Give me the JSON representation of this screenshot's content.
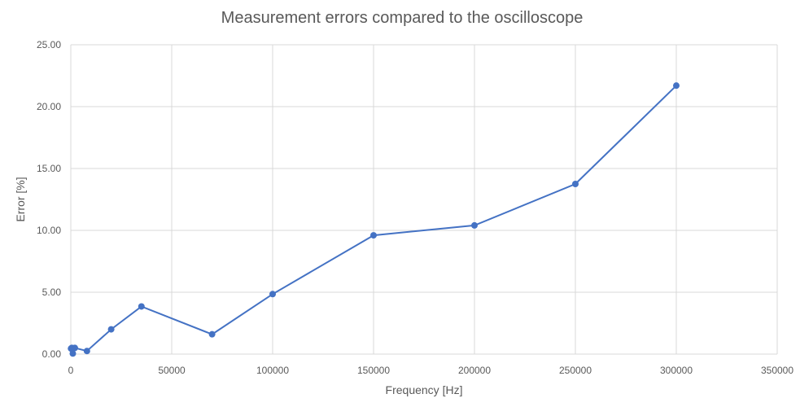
{
  "chart_data": {
    "type": "scatter",
    "title": "Measurement errors compared to the oscilloscope",
    "xlabel": "Frequency [Hz]",
    "ylabel": "Error [%]",
    "xlim": [
      0,
      350000
    ],
    "ylim": [
      0,
      25
    ],
    "x_ticks": [
      "0",
      "50000",
      "100000",
      "150000",
      "200000",
      "250000",
      "300000",
      "350000"
    ],
    "y_ticks": [
      "0.00",
      "5.00",
      "10.00",
      "15.00",
      "20.00",
      "25.00"
    ],
    "grid": true,
    "legend": "none",
    "series": [
      {
        "color": "#4472c4",
        "x": [
          100,
          500,
          1000,
          2000,
          8000,
          20000,
          35000,
          70000,
          100000,
          150000,
          200000,
          250000,
          300000
        ],
        "y": [
          0.45,
          0.5,
          0.05,
          0.5,
          0.25,
          2.0,
          3.85,
          1.6,
          4.85,
          9.6,
          10.4,
          13.75,
          21.7
        ]
      }
    ]
  }
}
